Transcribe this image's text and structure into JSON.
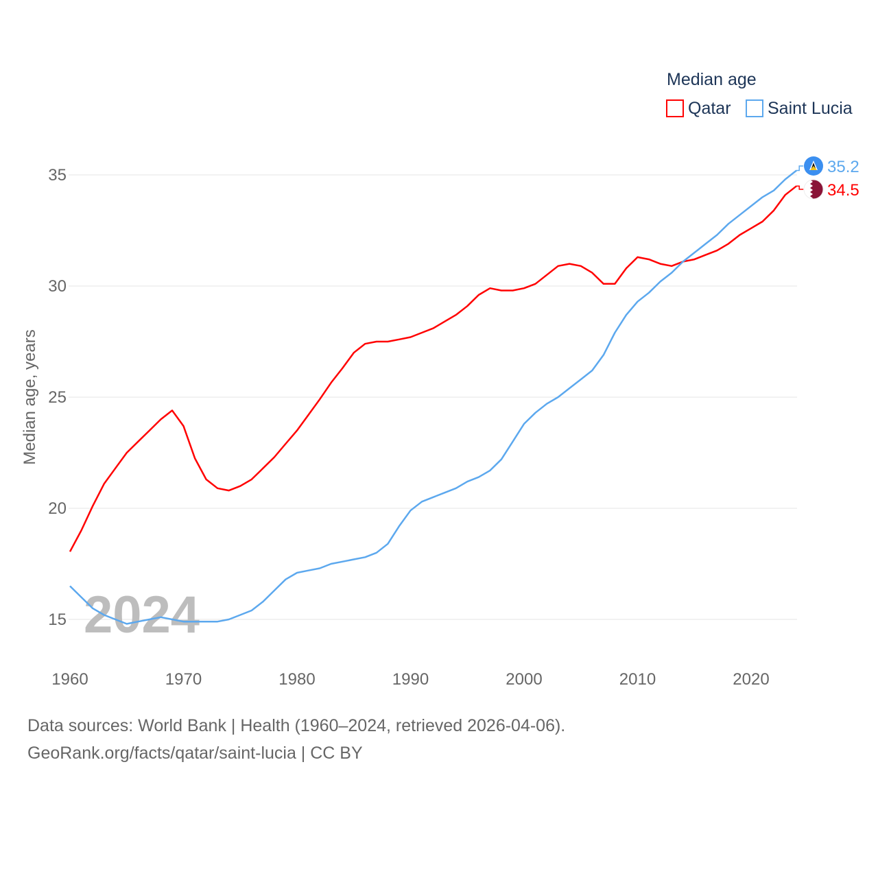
{
  "chart_data": {
    "type": "line",
    "title": "",
    "legend_title": "Median age",
    "legend_position": "top-right",
    "xlabel": "",
    "ylabel": "Median age, years",
    "xlim": [
      1960,
      2024
    ],
    "ylim": [
      13.5,
      36.5
    ],
    "xticks": [
      1960,
      1970,
      1980,
      1990,
      2000,
      2010,
      2020
    ],
    "yticks": [
      15,
      20,
      25,
      30,
      35
    ],
    "grid": true,
    "year_watermark": "2024",
    "x_start": 1960,
    "series": [
      {
        "name": "Qatar",
        "color": "#ff0000",
        "end_label": "34.5",
        "flag_icon": "qatar-flag-icon",
        "values": [
          18.05,
          19.0,
          20.1,
          21.1,
          21.8,
          22.5,
          23.0,
          23.5,
          24.0,
          24.4,
          23.7,
          22.25,
          21.3,
          20.9,
          20.8,
          21.0,
          21.3,
          21.8,
          22.3,
          22.9,
          23.5,
          24.2,
          24.9,
          25.65,
          26.3,
          27.0,
          27.4,
          27.5,
          27.5,
          27.6,
          27.7,
          27.9,
          28.1,
          28.4,
          28.7,
          29.1,
          29.6,
          29.9,
          29.8,
          29.8,
          29.9,
          30.1,
          30.5,
          30.9,
          31.0,
          30.9,
          30.6,
          30.1,
          30.1,
          30.8,
          31.3,
          31.2,
          31.0,
          30.9,
          31.1,
          31.2,
          31.4,
          31.6,
          31.9,
          32.3,
          32.6,
          32.9,
          33.4,
          34.1,
          34.5
        ]
      },
      {
        "name": "Saint Lucia",
        "color": "#5ca8ee",
        "end_label": "35.2",
        "flag_icon": "saint-lucia-flag-icon",
        "values": [
          16.5,
          16.0,
          15.5,
          15.2,
          15.0,
          14.8,
          14.9,
          15.0,
          15.1,
          15.0,
          14.9,
          14.9,
          14.9,
          14.9,
          15.0,
          15.2,
          15.4,
          15.8,
          16.3,
          16.8,
          17.1,
          17.2,
          17.3,
          17.5,
          17.6,
          17.7,
          17.8,
          18.0,
          18.4,
          19.2,
          19.9,
          20.3,
          20.5,
          20.7,
          20.9,
          21.2,
          21.4,
          21.7,
          22.2,
          23.0,
          23.8,
          24.3,
          24.7,
          25.0,
          25.4,
          25.8,
          26.2,
          26.9,
          27.9,
          28.7,
          29.3,
          29.7,
          30.2,
          30.6,
          31.1,
          31.5,
          31.9,
          32.3,
          32.8,
          33.2,
          33.6,
          34.0,
          34.3,
          34.8,
          35.2
        ]
      }
    ]
  },
  "footer": {
    "line1": "Data sources: World Bank | Health (1960–2024, retrieved 2026-04-06).",
    "line2": "GeoRank.org/facts/qatar/saint-lucia | CC BY"
  }
}
